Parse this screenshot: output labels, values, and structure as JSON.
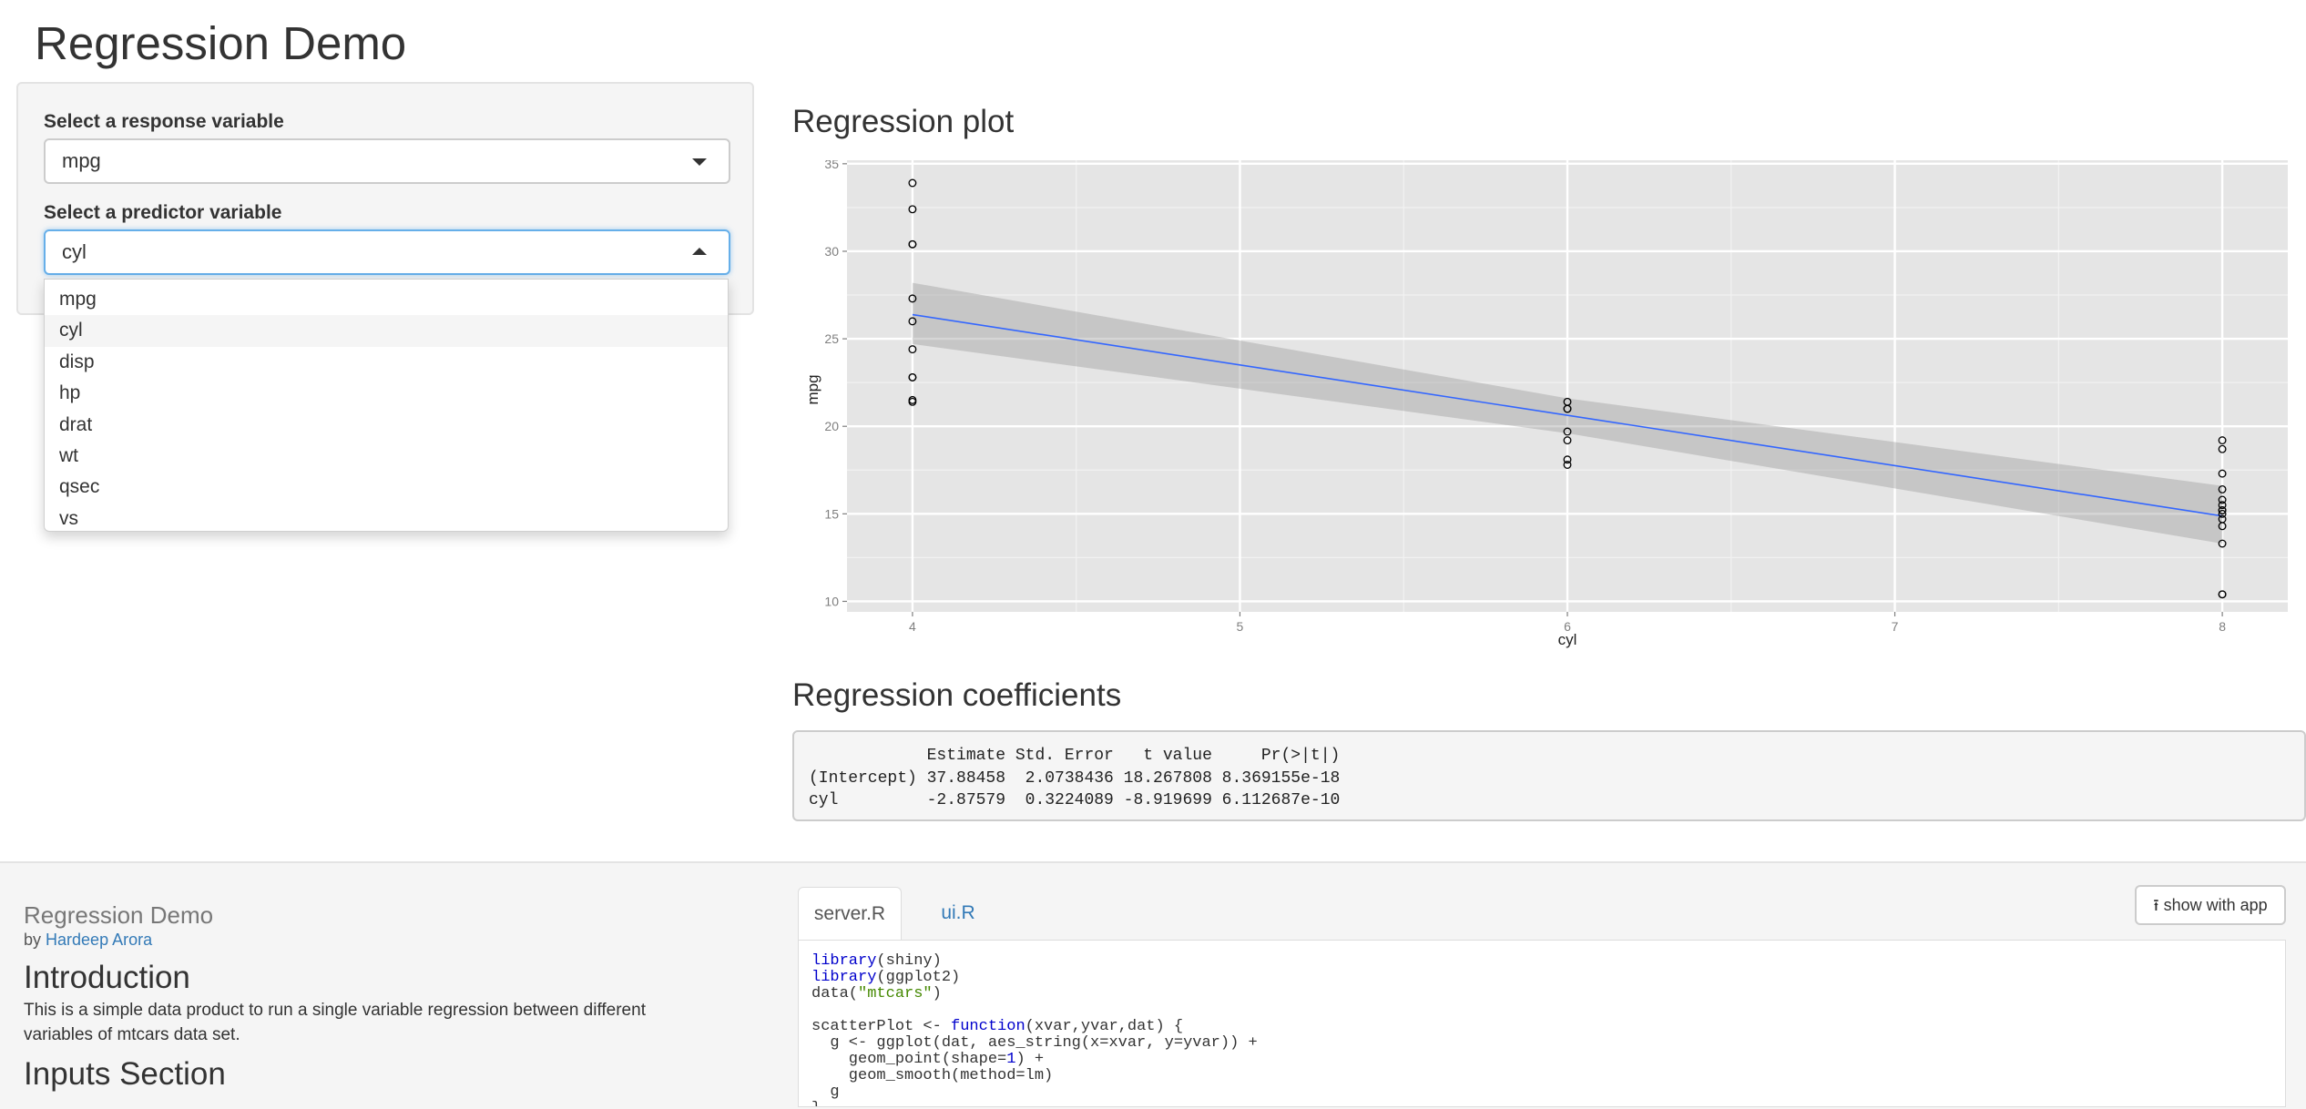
{
  "app_title": "Regression Demo",
  "sidebar": {
    "response_label": "Select a response variable",
    "response_value": "mpg",
    "predictor_label": "Select a predictor variable",
    "predictor_value": "cyl",
    "dropdown_options": [
      "mpg",
      "cyl",
      "disp",
      "hp",
      "drat",
      "wt",
      "qsec",
      "vs"
    ],
    "dropdown_selected": "cyl"
  },
  "plot": {
    "heading": "Regression plot",
    "chart_data": {
      "type": "scatter",
      "xlabel": "cyl",
      "ylabel": "mpg",
      "xlim": [
        3.8,
        8.2
      ],
      "ylim": [
        9.4,
        35.2
      ],
      "x_ticks": [
        4,
        5,
        6,
        7,
        8
      ],
      "y_ticks": [
        10,
        15,
        20,
        25,
        30,
        35
      ],
      "grid": true,
      "points": [
        [
          4,
          33.9
        ],
        [
          4,
          32.4
        ],
        [
          4,
          30.4
        ],
        [
          4,
          30.4
        ],
        [
          4,
          27.3
        ],
        [
          4,
          26.0
        ],
        [
          4,
          24.4
        ],
        [
          4,
          22.8
        ],
        [
          4,
          22.8
        ],
        [
          4,
          21.5
        ],
        [
          4,
          21.4
        ],
        [
          6,
          21.4
        ],
        [
          6,
          21.0
        ],
        [
          6,
          21.0
        ],
        [
          6,
          19.7
        ],
        [
          6,
          19.2
        ],
        [
          6,
          18.1
        ],
        [
          6,
          17.8
        ],
        [
          8,
          19.2
        ],
        [
          8,
          18.7
        ],
        [
          8,
          17.3
        ],
        [
          8,
          16.4
        ],
        [
          8,
          15.8
        ],
        [
          8,
          15.5
        ],
        [
          8,
          15.2
        ],
        [
          8,
          15.2
        ],
        [
          8,
          15.0
        ],
        [
          8,
          14.7
        ],
        [
          8,
          14.3
        ],
        [
          8,
          13.3
        ],
        [
          8,
          10.4
        ],
        [
          8,
          10.4
        ]
      ],
      "fit_line": {
        "intercept": 37.88458,
        "slope": -2.87579
      },
      "confidence_band": [
        {
          "x": 4,
          "lower": 24.7,
          "upper": 28.2
        },
        {
          "x": 6,
          "lower": 19.6,
          "upper": 21.6
        },
        {
          "x": 8,
          "lower": 13.3,
          "upper": 16.6
        }
      ]
    }
  },
  "coefficients": {
    "heading": "Regression coefficients",
    "header": "            Estimate Std. Error   t value     Pr(>|t|)",
    "row1": "(Intercept) 37.88458  2.0738436 18.267808 8.369155e-18",
    "row2": "cyl         -2.87579  0.3224089 -8.919699 6.112687e-10"
  },
  "footer": {
    "title": "Regression Demo",
    "by": "by",
    "author": "Hardeep Arora",
    "intro_heading": "Introduction",
    "intro_text": "This is a simple data product to run a single variable regression between different variables of mtcars data set.",
    "inputs_heading": "Inputs Section",
    "tabs": [
      "server.R",
      "ui.R"
    ],
    "show_with_app": "show with app",
    "code_lines": [
      "library(shiny)",
      "library(ggplot2)",
      "data(\"mtcars\")",
      "",
      "scatterPlot <- function(xvar,yvar,dat) {",
      "  g <- ggplot(dat, aes_string(x=xvar, y=yvar)) +",
      "    geom_point(shape=1) +",
      "    geom_smooth(method=lm)",
      "  g",
      "}"
    ]
  }
}
